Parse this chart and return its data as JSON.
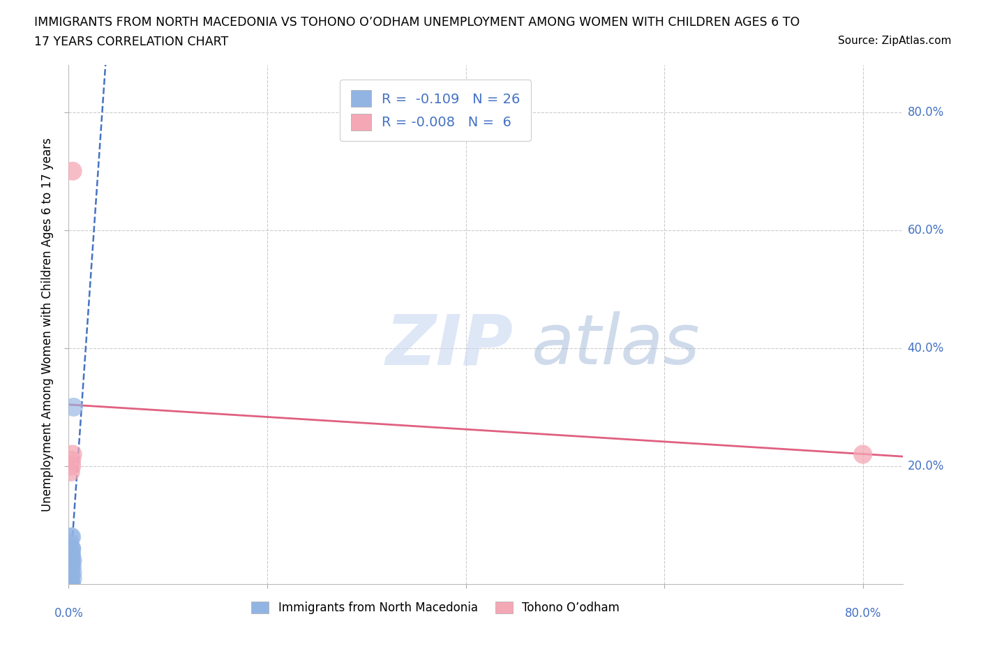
{
  "title_line1": "IMMIGRANTS FROM NORTH MACEDONIA VS TOHONO O’ODHAM UNEMPLOYMENT AMONG WOMEN WITH CHILDREN AGES 6 TO",
  "title_line2": "17 YEARS CORRELATION CHART",
  "source": "Source: ZipAtlas.com",
  "xlabel_legend_blue": "Immigrants from North Macedonia",
  "xlabel_legend_pink": "Tohono O’odham",
  "ylabel": "Unemployment Among Women with Children Ages 6 to 17 years",
  "blue_R": -0.109,
  "blue_N": 26,
  "pink_R": -0.008,
  "pink_N": 6,
  "blue_color": "#92b4e3",
  "pink_color": "#f4a7b5",
  "blue_line_color": "#4472c4",
  "pink_line_color": "#e06080",
  "legend_blue_label": "R =  -0.109   N = 26",
  "legend_pink_label": "R = -0.008   N =  6",
  "blue_points_x": [
    0.002,
    0.003,
    0.001,
    0.0015,
    0.002,
    0.004,
    0.003,
    0.0025,
    0.002,
    0.003,
    0.001,
    0.002,
    0.003,
    0.004,
    0.0035,
    0.002,
    0.003,
    0.001,
    0.002,
    0.0015,
    0.003,
    0.004,
    0.002,
    0.001,
    0.002,
    0.005
  ],
  "blue_points_y": [
    0.0,
    0.0,
    0.0,
    0.02,
    0.04,
    0.04,
    0.04,
    0.05,
    0.06,
    0.06,
    0.07,
    0.08,
    0.08,
    0.02,
    0.03,
    0.03,
    0.05,
    0.05,
    0.01,
    0.01,
    0.06,
    0.01,
    0.02,
    0.03,
    0.03,
    0.3
  ],
  "pink_points_x": [
    0.004,
    0.002,
    0.003,
    0.004,
    0.003,
    0.8
  ],
  "pink_points_y": [
    0.7,
    0.19,
    0.2,
    0.22,
    0.21,
    0.22
  ],
  "xlim": [
    0.0,
    0.84
  ],
  "ylim": [
    0.0,
    0.88
  ],
  "xticks": [
    0.0,
    0.2,
    0.4,
    0.6,
    0.8
  ],
  "yticks": [
    0.2,
    0.4,
    0.6,
    0.8
  ],
  "xtick_labels_shown": {
    "0.0": "0.0%",
    "0.8": "80.0%"
  },
  "ytick_labels_shown": {
    "0.2": "20.0%",
    "0.4": "40.0%",
    "0.6": "60.0%",
    "0.8": "80.0%"
  },
  "grid_color": "#cccccc",
  "grid_style": "--",
  "watermark_text": "ZIP",
  "watermark_text2": "atlas",
  "background": "#ffffff"
}
